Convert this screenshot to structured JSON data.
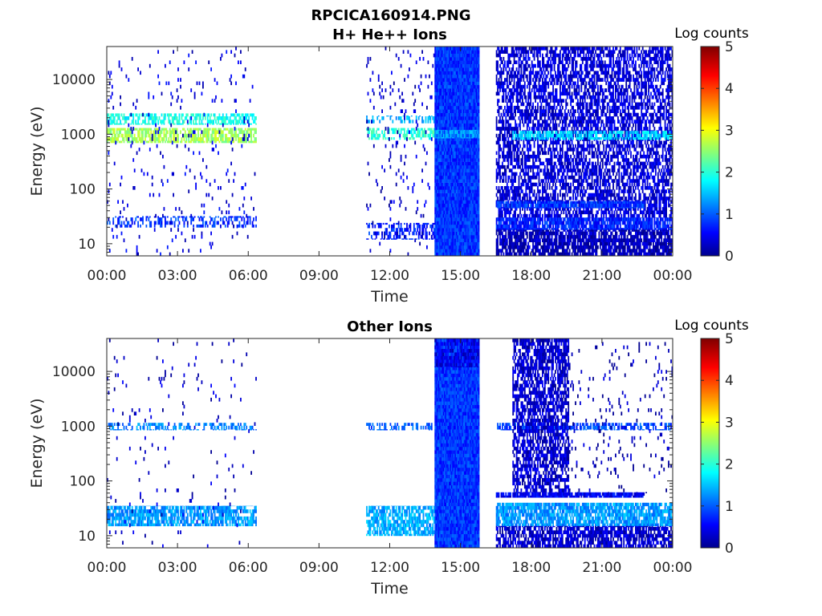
{
  "figure": {
    "title": "RPCICA160914.PNG"
  },
  "chart_data": [
    {
      "type": "heatmap",
      "title": "H+ He++ Ions",
      "xlabel": "Time",
      "ylabel": "Energy (eV)",
      "x_tick_labels": [
        "00:00",
        "03:00",
        "06:00",
        "09:00",
        "12:00",
        "15:00",
        "18:00",
        "21:00",
        "00:00"
      ],
      "x_range_hours": [
        0,
        24
      ],
      "y_tick_labels": [
        "10",
        "100",
        "1000",
        "10000"
      ],
      "y_ticks_ev": [
        10,
        100,
        1000,
        10000
      ],
      "y_range_ev": [
        6,
        40000
      ],
      "y_scale": "log",
      "colorbar": {
        "label": "Log counts",
        "ticks": [
          "0",
          "1",
          "2",
          "3",
          "4",
          "5"
        ],
        "range": [
          0,
          5
        ],
        "colormap": "jet"
      },
      "regions": [
        {
          "t": [
            0,
            6.3
          ],
          "e": [
            700,
            1300
          ],
          "level": 2.6,
          "density": 0.7
        },
        {
          "t": [
            0,
            6.3
          ],
          "e": [
            1500,
            2400
          ],
          "level": 1.9,
          "density": 0.55
        },
        {
          "t": [
            0,
            6.3
          ],
          "e": [
            20,
            32
          ],
          "level": 0.8,
          "density": 0.35
        },
        {
          "t": [
            0,
            6.3
          ],
          "e": [
            6,
            40000
          ],
          "level": 0.4,
          "density": 0.04
        },
        {
          "t": [
            11.0,
            13.9
          ],
          "e": [
            800,
            1300
          ],
          "level": 2.0,
          "density": 0.55
        },
        {
          "t": [
            11.0,
            13.9
          ],
          "e": [
            1600,
            2200
          ],
          "level": 1.4,
          "density": 0.35
        },
        {
          "t": [
            11.0,
            13.9
          ],
          "e": [
            12,
            24
          ],
          "level": 0.7,
          "density": 0.45
        },
        {
          "t": [
            11.0,
            13.9
          ],
          "e": [
            6,
            40000
          ],
          "level": 0.3,
          "density": 0.05
        },
        {
          "t": [
            13.9,
            15.8
          ],
          "e": [
            6,
            40000
          ],
          "level": 0.8,
          "density": 1.0
        },
        {
          "t": [
            13.9,
            15.8
          ],
          "e": [
            850,
            1200
          ],
          "level": 1.3,
          "density": 0.8
        },
        {
          "t": [
            16.5,
            24.0
          ],
          "e": [
            30,
            40000
          ],
          "level": 0.35,
          "density": 0.6
        },
        {
          "t": [
            17.2,
            24.0
          ],
          "e": [
            800,
            1150
          ],
          "level": 1.6,
          "density": 0.7
        },
        {
          "t": [
            16.5,
            22.8
          ],
          "e": [
            45,
            60
          ],
          "level": 0.8,
          "density": 0.9
        },
        {
          "t": [
            16.5,
            24.0
          ],
          "e": [
            18,
            30
          ],
          "level": 0.7,
          "density": 0.85
        },
        {
          "t": [
            16.5,
            24.0
          ],
          "e": [
            6,
            18
          ],
          "level": 0.2,
          "density": 0.8
        }
      ]
    },
    {
      "type": "heatmap",
      "title": "Other Ions",
      "xlabel": "Time",
      "ylabel": "Energy (eV)",
      "x_tick_labels": [
        "00:00",
        "03:00",
        "06:00",
        "09:00",
        "12:00",
        "15:00",
        "18:00",
        "21:00",
        "00:00"
      ],
      "x_range_hours": [
        0,
        24
      ],
      "y_tick_labels": [
        "10",
        "100",
        "1000",
        "10000"
      ],
      "y_ticks_ev": [
        10,
        100,
        1000,
        10000
      ],
      "y_range_ev": [
        6,
        40000
      ],
      "y_scale": "log",
      "colorbar": {
        "label": "Log counts",
        "ticks": [
          "0",
          "1",
          "2",
          "3",
          "4",
          "5"
        ],
        "range": [
          0,
          5
        ],
        "colormap": "jet"
      },
      "regions": [
        {
          "t": [
            0,
            6.3
          ],
          "e": [
            850,
            1150
          ],
          "level": 1.2,
          "density": 0.45
        },
        {
          "t": [
            0,
            6.3
          ],
          "e": [
            15,
            35
          ],
          "level": 1.3,
          "density": 0.75
        },
        {
          "t": [
            0,
            6.3
          ],
          "e": [
            6,
            40000
          ],
          "level": 0.3,
          "density": 0.02
        },
        {
          "t": [
            11.0,
            13.9
          ],
          "e": [
            850,
            1150
          ],
          "level": 1.0,
          "density": 0.4
        },
        {
          "t": [
            11.0,
            13.9
          ],
          "e": [
            10,
            35
          ],
          "level": 1.4,
          "density": 0.7
        },
        {
          "t": [
            13.9,
            15.8
          ],
          "e": [
            6,
            40000
          ],
          "level": 0.8,
          "density": 1.0
        },
        {
          "t": [
            13.9,
            15.8
          ],
          "e": [
            12000,
            40000
          ],
          "level": 0.4,
          "density": 0.6
        },
        {
          "t": [
            16.5,
            24.0
          ],
          "e": [
            850,
            1150
          ],
          "level": 0.9,
          "density": 0.6
        },
        {
          "t": [
            17.2,
            19.6
          ],
          "e": [
            60,
            40000
          ],
          "level": 0.3,
          "density": 0.65
        },
        {
          "t": [
            19.6,
            24.0
          ],
          "e": [
            60,
            40000
          ],
          "level": 0.2,
          "density": 0.05
        },
        {
          "t": [
            16.5,
            22.8
          ],
          "e": [
            50,
            62
          ],
          "level": 0.5,
          "density": 0.9
        },
        {
          "t": [
            16.5,
            24.0
          ],
          "e": [
            15,
            40
          ],
          "level": 1.3,
          "density": 0.8
        },
        {
          "t": [
            16.5,
            24.0
          ],
          "e": [
            6,
            15
          ],
          "level": 0.3,
          "density": 0.7
        }
      ]
    }
  ]
}
